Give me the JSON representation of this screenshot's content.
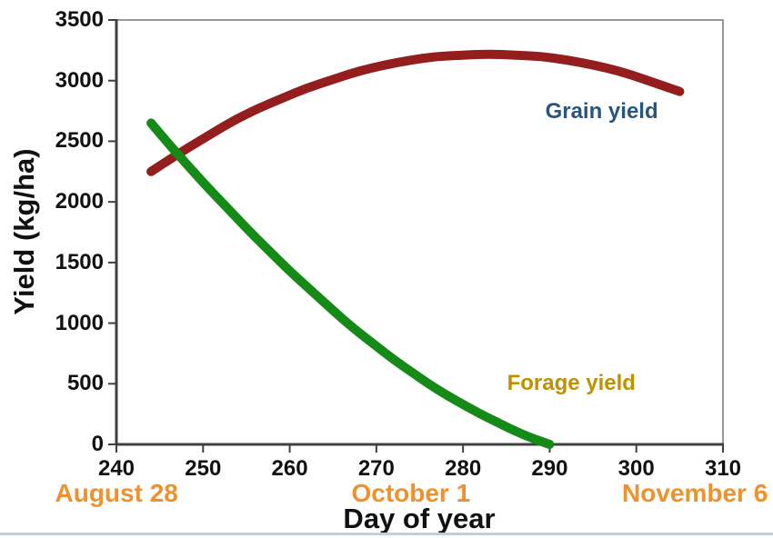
{
  "chart_data": {
    "type": "line",
    "title": "",
    "xlabel": "Day of year",
    "ylabel": "Yield (kg/ha)",
    "xlim": [
      240,
      310
    ],
    "ylim": [
      0,
      3500
    ],
    "x_ticks": [
      240,
      250,
      260,
      270,
      280,
      290,
      300,
      310
    ],
    "y_ticks": [
      0,
      500,
      1000,
      1500,
      2000,
      2500,
      3000,
      3500
    ],
    "grid": false,
    "legend_position": "inline-labels",
    "series": [
      {
        "name": "Grain yield",
        "color": "#941d1d",
        "label_color": "#27567f",
        "label_at": {
          "day": 296,
          "value": 2740
        },
        "points": [
          [
            244,
            2250
          ],
          [
            247,
            2390
          ],
          [
            250,
            2520
          ],
          [
            253,
            2650
          ],
          [
            256,
            2760
          ],
          [
            259,
            2850
          ],
          [
            262,
            2940
          ],
          [
            265,
            3010
          ],
          [
            268,
            3080
          ],
          [
            271,
            3130
          ],
          [
            274,
            3170
          ],
          [
            277,
            3200
          ],
          [
            280,
            3210
          ],
          [
            283,
            3220
          ],
          [
            286,
            3210
          ],
          [
            289,
            3200
          ],
          [
            292,
            3170
          ],
          [
            295,
            3130
          ],
          [
            298,
            3080
          ],
          [
            301,
            3010
          ],
          [
            305,
            2910
          ]
        ]
      },
      {
        "name": "Forage yield",
        "color": "#168a16",
        "label_color": "#bf9000",
        "label_at": {
          "day": 292.5,
          "value": 500
        },
        "points": [
          [
            244,
            2650
          ],
          [
            246,
            2480
          ],
          [
            248,
            2320
          ],
          [
            250,
            2160
          ],
          [
            252,
            2010
          ],
          [
            254,
            1860
          ],
          [
            256,
            1710
          ],
          [
            258,
            1570
          ],
          [
            260,
            1430
          ],
          [
            262,
            1300
          ],
          [
            264,
            1170
          ],
          [
            266,
            1040
          ],
          [
            268,
            920
          ],
          [
            270,
            810
          ],
          [
            272,
            700
          ],
          [
            274,
            600
          ],
          [
            276,
            500
          ],
          [
            278,
            410
          ],
          [
            280,
            330
          ],
          [
            282,
            250
          ],
          [
            284,
            180
          ],
          [
            286,
            110
          ],
          [
            288,
            50
          ],
          [
            290,
            0
          ]
        ]
      }
    ],
    "annotations": [
      {
        "label": "August 28",
        "day": 240
      },
      {
        "label": "October 1",
        "day": 274
      },
      {
        "label": "November 6",
        "day": 310
      }
    ]
  },
  "colors": {
    "annotation_orange": "#f0912d",
    "axis_line": "#3f3f3f",
    "plot_border": "#7f7f7f",
    "tick_text": "#111111",
    "bottom_edge": "#c6ced4",
    "background": "#ffffff"
  }
}
